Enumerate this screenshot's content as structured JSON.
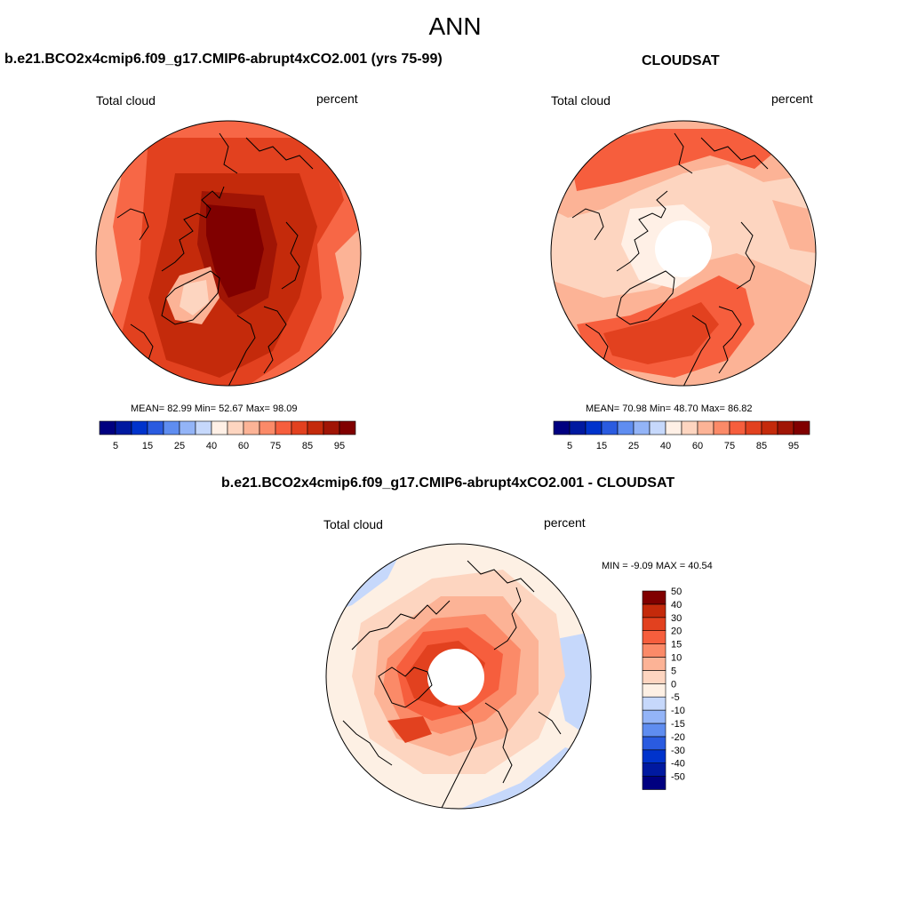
{
  "figure": {
    "title": "ANN"
  },
  "panels": [
    {
      "id": "model",
      "title": "b.e21.BCO2x4cmip6.f09_g17.CMIP6-abrupt4xCO2.001 (yrs 75-99)",
      "left_label": "Total cloud",
      "right_label": "percent",
      "stats": {
        "mean_label": "MEAN=",
        "mean": "82.99",
        "min_label": "Min=",
        "min": "52.67",
        "max_label": "Max=",
        "max": "98.09"
      }
    },
    {
      "id": "obs",
      "title": "CLOUDSAT",
      "left_label": "Total cloud",
      "right_label": "percent",
      "stats": {
        "mean_label": "MEAN=",
        "mean": "70.98",
        "min_label": "Min=",
        "min": "48.70",
        "max_label": "Max=",
        "max": "86.82"
      }
    },
    {
      "id": "diff",
      "title": "b.e21.BCO2x4cmip6.f09_g17.CMIP6-abrupt4xCO2.001 - CLOUDSAT",
      "left_label": "Total cloud",
      "right_label": "percent",
      "stats": {
        "min_label": "MIN =",
        "min": "-9.09",
        "max_label": "MAX =",
        "max": "40.54"
      }
    }
  ],
  "colorbar_abs": {
    "colors": [
      "#000080",
      "#0019a0",
      "#0033cc",
      "#2a5be0",
      "#5f8df0",
      "#93b4f7",
      "#c6d8fb",
      "#fff0e6",
      "#fdd5c0",
      "#fcb396",
      "#fb8a68",
      "#f65e3d",
      "#e2411f",
      "#c42a0b",
      "#a01505",
      "#800000"
    ],
    "ticks": [
      "5",
      "15",
      "25",
      "40",
      "60",
      "75",
      "85",
      "95"
    ]
  },
  "colorbar_diff": {
    "colors": [
      "#000080",
      "#0019a0",
      "#0033cc",
      "#2a5be0",
      "#5f8df0",
      "#93b4f7",
      "#c6d8fb",
      "#fdf0e4",
      "#fdd5c0",
      "#fcb396",
      "#fb8a68",
      "#f65e3d",
      "#e2411f",
      "#c42a0b",
      "#800000"
    ],
    "ticks": [
      "-50",
      "-40",
      "-30",
      "-20",
      "-15",
      "-10",
      "-5",
      "0",
      "5",
      "10",
      "15",
      "20",
      "30",
      "40",
      "50"
    ]
  }
}
